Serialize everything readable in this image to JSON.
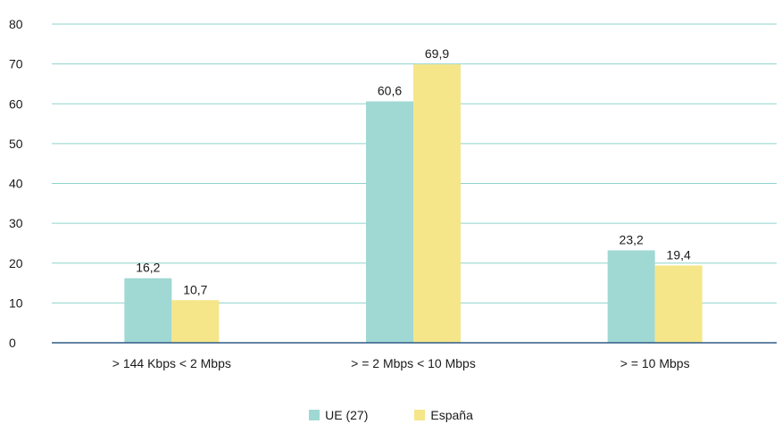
{
  "chart_data": {
    "type": "bar",
    "categories": [
      "> 144 Kbps < 2 Mbps",
      "> = 2 Mbps < 10 Mbps",
      "> = 10 Mbps"
    ],
    "series": [
      {
        "name": "UE (27)",
        "values": [
          16.2,
          60.6,
          23.2
        ],
        "labels": [
          "16,2",
          "60,6",
          "23,2"
        ],
        "color": "#a0d8d3"
      },
      {
        "name": "España",
        "values": [
          10.7,
          69.9,
          19.4
        ],
        "labels": [
          "10,7",
          "69,9",
          "19,4"
        ],
        "color": "#f5e68a"
      }
    ],
    "ylim": [
      0,
      80
    ],
    "yticks": [
      0,
      10,
      20,
      30,
      40,
      50,
      60,
      70,
      80
    ],
    "grid": true,
    "gridColor": "#8fd3cb",
    "axisColor": "#2e5b86",
    "legend_position": "bottom"
  }
}
